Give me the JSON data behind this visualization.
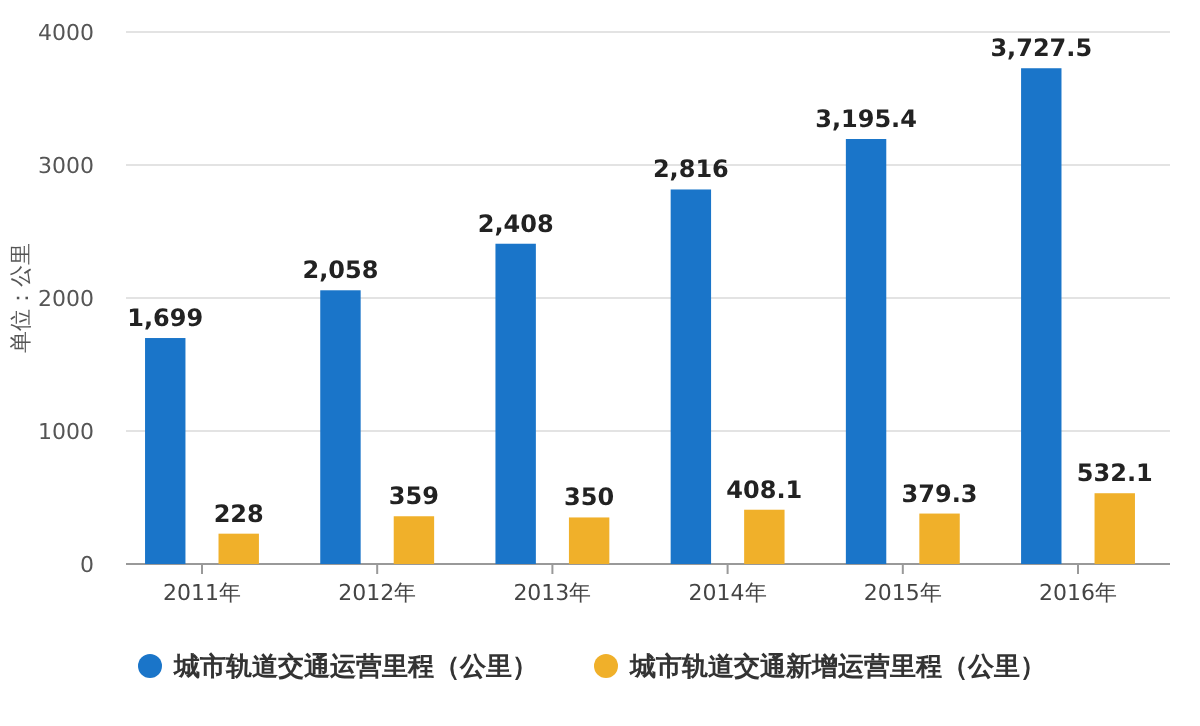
{
  "chart_data": {
    "type": "bar",
    "ylabel": "单位：公里",
    "categories": [
      "2011年",
      "2012年",
      "2013年",
      "2014年",
      "2015年",
      "2016年"
    ],
    "series": [
      {
        "name": "城市轨道交通运营里程（公里）",
        "color": "#1a75c9",
        "values": [
          1699,
          2058,
          2408,
          2816,
          3195.4,
          3727.5
        ],
        "value_labels": [
          "1,699",
          "2,058",
          "2,408",
          "2,816",
          "3,195.4",
          "3,727.5"
        ]
      },
      {
        "name": "城市轨道交通新增运营里程（公里）",
        "color": "#f0b02a",
        "values": [
          228,
          359,
          350,
          408.1,
          379.3,
          532.1
        ],
        "value_labels": [
          "228",
          "359",
          "350",
          "408.1",
          "379.3",
          "532.1"
        ]
      }
    ],
    "ylim": [
      0,
      4000
    ],
    "yticks": [
      0,
      1000,
      2000,
      3000,
      4000
    ],
    "grid": "y",
    "legend": "bottom"
  }
}
